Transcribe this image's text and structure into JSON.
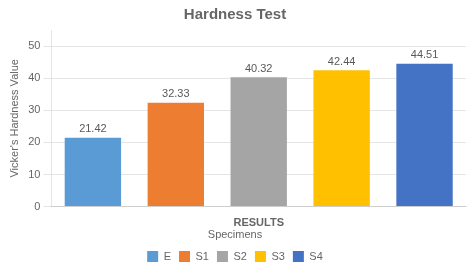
{
  "chart_data": {
    "type": "bar",
    "title": "Hardness Test",
    "categories": [
      "E",
      "S1",
      "S2",
      "S3",
      "S4"
    ],
    "values": [
      21.42,
      32.33,
      40.32,
      42.44,
      44.51
    ],
    "colors": [
      "#5B9BD5",
      "#ED7D31",
      "#A5A5A5",
      "#FFC000",
      "#4472C4"
    ],
    "xlabel": "RESULTS",
    "ylabel": "Vicker's Hardness Value",
    "ylim": [
      0,
      55
    ],
    "yticks": [
      0,
      10,
      20,
      30,
      40,
      50
    ],
    "grid": true,
    "legend": "bottom",
    "legend_title": "Specimens",
    "data_labels": true,
    "tick_labels": "y"
  }
}
